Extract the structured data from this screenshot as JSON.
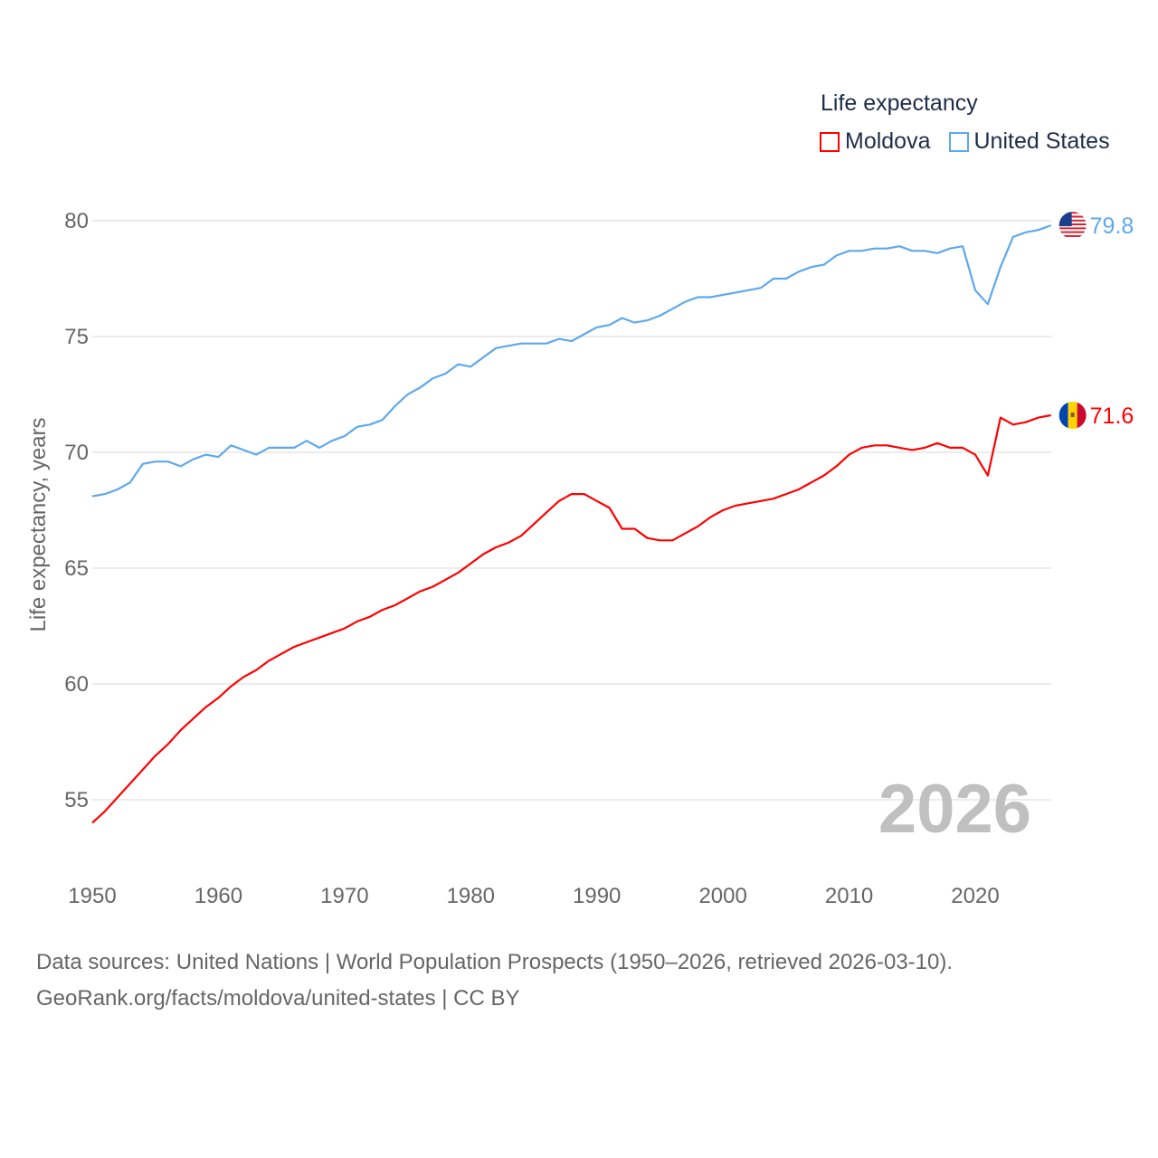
{
  "chart_data": {
    "type": "line",
    "legend_title": "Life expectancy",
    "ylabel": "Life expectancy, years",
    "xlabel": "",
    "xlim": [
      1950,
      2026
    ],
    "ylim": [
      53.5,
      80.5
    ],
    "xticks": [
      1950,
      1960,
      1970,
      1980,
      1990,
      2000,
      2010,
      2020
    ],
    "yticks": [
      55,
      60,
      65,
      70,
      75,
      80
    ],
    "grid": true,
    "legend_placement": "top-right",
    "year_watermark": "2026",
    "x": [
      1950,
      1951,
      1952,
      1953,
      1954,
      1955,
      1956,
      1957,
      1958,
      1959,
      1960,
      1961,
      1962,
      1963,
      1964,
      1965,
      1966,
      1967,
      1968,
      1969,
      1970,
      1971,
      1972,
      1973,
      1974,
      1975,
      1976,
      1977,
      1978,
      1979,
      1980,
      1981,
      1982,
      1983,
      1984,
      1985,
      1986,
      1987,
      1988,
      1989,
      1990,
      1991,
      1992,
      1993,
      1994,
      1995,
      1996,
      1997,
      1998,
      1999,
      2000,
      2001,
      2002,
      2003,
      2004,
      2005,
      2006,
      2007,
      2008,
      2009,
      2010,
      2011,
      2012,
      2013,
      2014,
      2015,
      2016,
      2017,
      2018,
      2019,
      2020,
      2021,
      2022,
      2023,
      2024,
      2025,
      2026
    ],
    "series": [
      {
        "name": "Moldova",
        "color": "#ff0000",
        "end_label": "71.6",
        "flag": "moldova-flag",
        "values": [
          54.0,
          54.5,
          55.1,
          55.7,
          56.3,
          56.9,
          57.4,
          58.0,
          58.5,
          59.0,
          59.4,
          59.9,
          60.3,
          60.6,
          61.0,
          61.3,
          61.6,
          61.8,
          62.0,
          62.2,
          62.4,
          62.7,
          62.9,
          63.2,
          63.4,
          63.7,
          64.0,
          64.2,
          64.5,
          64.8,
          65.2,
          65.6,
          65.9,
          66.1,
          66.4,
          66.9,
          67.4,
          67.9,
          68.2,
          68.2,
          67.9,
          67.6,
          66.7,
          66.7,
          66.3,
          66.2,
          66.2,
          66.5,
          66.8,
          67.2,
          67.5,
          67.7,
          67.8,
          67.9,
          68.0,
          68.2,
          68.4,
          68.7,
          69.0,
          69.4,
          69.9,
          70.2,
          70.3,
          70.3,
          70.2,
          70.1,
          70.2,
          70.4,
          70.2,
          70.2,
          69.9,
          69.0,
          71.5,
          71.2,
          71.3,
          71.5,
          71.6
        ]
      },
      {
        "name": "United States",
        "color": "#5ea8ec",
        "end_label": "79.8",
        "flag": "usa-flag",
        "values": [
          68.1,
          68.2,
          68.4,
          68.7,
          69.5,
          69.6,
          69.6,
          69.4,
          69.7,
          69.9,
          69.8,
          70.3,
          70.1,
          69.9,
          70.2,
          70.2,
          70.2,
          70.5,
          70.2,
          70.5,
          70.7,
          71.1,
          71.2,
          71.4,
          72.0,
          72.5,
          72.8,
          73.2,
          73.4,
          73.8,
          73.7,
          74.1,
          74.5,
          74.6,
          74.7,
          74.7,
          74.7,
          74.9,
          74.8,
          75.1,
          75.4,
          75.5,
          75.8,
          75.6,
          75.7,
          75.9,
          76.2,
          76.5,
          76.7,
          76.7,
          76.8,
          76.9,
          77.0,
          77.1,
          77.5,
          77.5,
          77.8,
          78.0,
          78.1,
          78.5,
          78.7,
          78.7,
          78.8,
          78.8,
          78.9,
          78.7,
          78.7,
          78.6,
          78.8,
          78.9,
          77.0,
          76.4,
          78.0,
          79.3,
          79.5,
          79.6,
          79.8
        ]
      }
    ]
  },
  "source": {
    "line1": "Data sources: United Nations | World Population Prospects (1950–2026, retrieved 2026-03-10).",
    "line2": "GeoRank.org/facts/moldova/united-states | CC BY"
  }
}
